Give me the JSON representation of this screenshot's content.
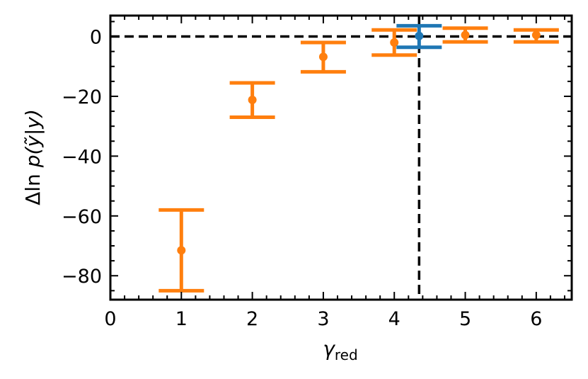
{
  "chart_data": {
    "type": "scatter",
    "xlabel_main": "γ",
    "xlabel_sub": "red",
    "ylabel_pre": "Δln ",
    "ylabel_fn": "p",
    "ylabel_arg": "(ỹ|y)",
    "xlim": [
      0,
      6.5
    ],
    "ylim": [
      -88,
      7
    ],
    "xticks": [
      0,
      1,
      2,
      3,
      4,
      5,
      6
    ],
    "xtick_labels": [
      "0",
      "1",
      "2",
      "3",
      "4",
      "5",
      "6"
    ],
    "yticks": [
      0,
      -20,
      -40,
      -60,
      -80
    ],
    "ytick_labels": [
      "0",
      "−20",
      "−40",
      "−60",
      "−80"
    ],
    "reference_lines": {
      "y": 0,
      "x": 4.35
    },
    "series": [
      {
        "color": "#ff7f0e",
        "points": [
          {
            "x": 1,
            "y": -71.5,
            "low": -85,
            "high": -58
          },
          {
            "x": 2,
            "y": -21.2,
            "low": -27,
            "high": -15.5
          },
          {
            "x": 3,
            "y": -6.8,
            "low": -11.8,
            "high": -2
          },
          {
            "x": 4,
            "y": -2,
            "low": -6.2,
            "high": 2.2
          },
          {
            "x": 5,
            "y": 0.5,
            "low": -1.8,
            "high": 2.8
          },
          {
            "x": 6,
            "y": 0.5,
            "low": -1.8,
            "high": 2.2
          }
        ]
      },
      {
        "color": "#1f77b4",
        "points": [
          {
            "x": 4.35,
            "y": 0.2,
            "low": -3.6,
            "high": 3.6
          }
        ]
      }
    ]
  }
}
